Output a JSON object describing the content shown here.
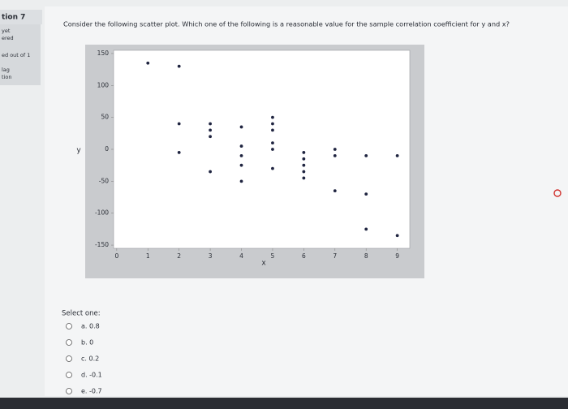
{
  "sidebar": {
    "question_number": "tion 7",
    "status_1": "yet",
    "status_2": "ered",
    "marks": "ed out of 1",
    "flag_1": "lag",
    "flag_2": "tion"
  },
  "question": {
    "text": "Consider the following scatter plot. Which one of the following is a reasonable value for the sample correlation coefficient for y and x?"
  },
  "chart_data": {
    "type": "scatter",
    "xlabel": "x",
    "ylabel": "y",
    "color": "#1f2440",
    "x": [
      1,
      2,
      2,
      2,
      3,
      3,
      3,
      3,
      4,
      4,
      4,
      4,
      4,
      5,
      5,
      5,
      5,
      5,
      5,
      6,
      6,
      6,
      6,
      6,
      7,
      7,
      7,
      8,
      8,
      8,
      9,
      9
    ],
    "y": [
      135,
      130,
      40,
      -5,
      40,
      30,
      20,
      -35,
      35,
      5,
      -10,
      -25,
      -50,
      50,
      40,
      30,
      10,
      0,
      -30,
      -5,
      -15,
      -25,
      -35,
      -45,
      0,
      -10,
      -65,
      -10,
      -70,
      -125,
      -10,
      -135
    ],
    "xlim": [
      -0.1,
      9.4
    ],
    "ylim": [
      -155,
      155
    ],
    "xticks": [
      0,
      1,
      2,
      3,
      4,
      5,
      6,
      7,
      8,
      9
    ],
    "yticks": [
      150,
      100,
      50,
      0,
      -50,
      -100,
      -150
    ]
  },
  "answer": {
    "prompt": "Select one:",
    "options": [
      "a. 0.8",
      "b. 0",
      "c. 0.2",
      "d. -0.1",
      "e. -0.7"
    ]
  }
}
